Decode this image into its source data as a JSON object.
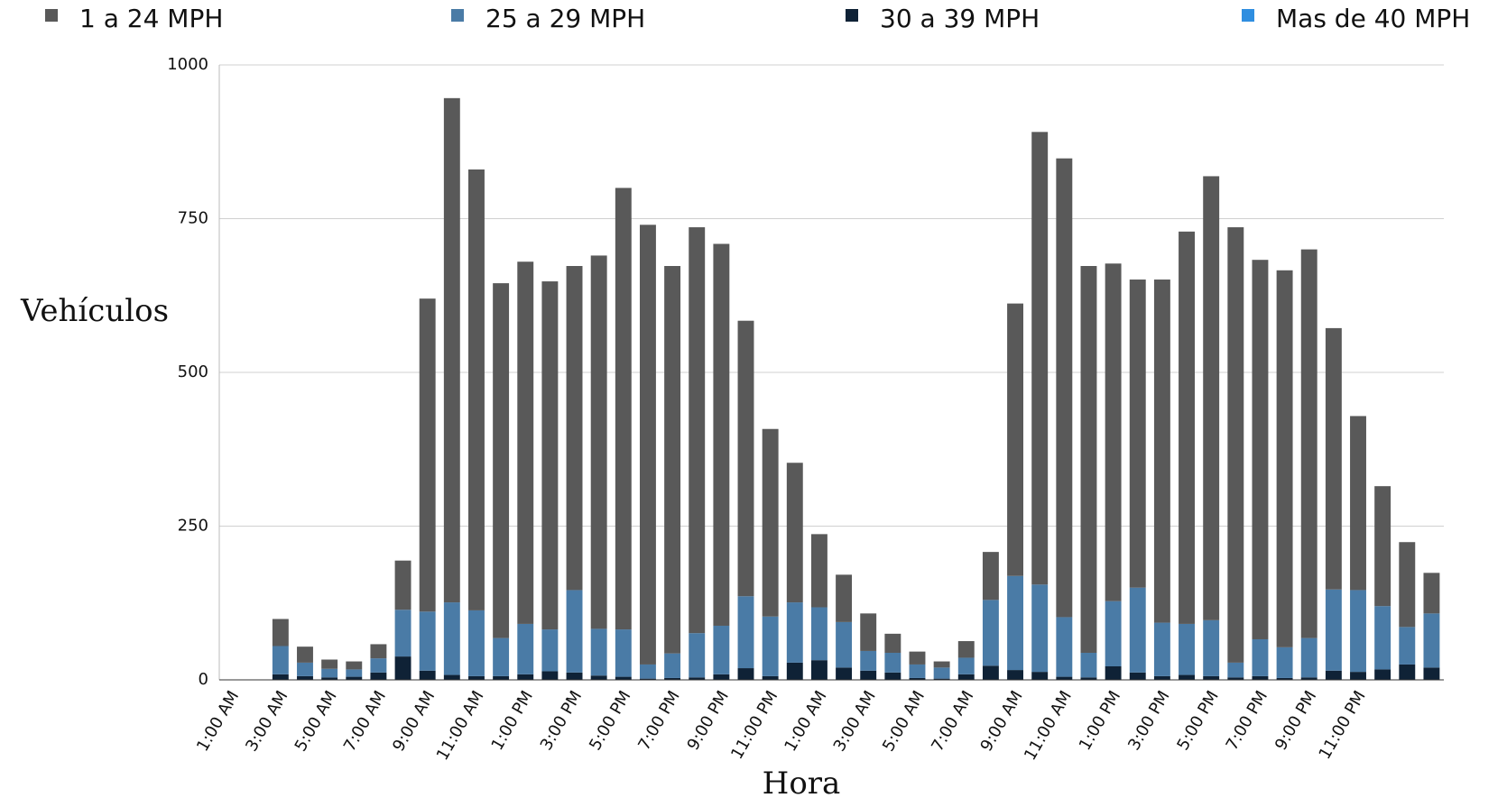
{
  "chart_data": {
    "type": "stacked_bar",
    "x_label": "Hora",
    "y_label": "Vehículos",
    "categories": [
      "1:00 AM",
      null,
      "3:00 AM",
      null,
      "5:00 AM",
      null,
      "7:00 AM",
      null,
      "9:00 AM",
      null,
      "11:00 AM",
      null,
      "1:00 PM",
      null,
      "3:00 PM",
      null,
      "5:00 PM",
      null,
      "7:00 PM",
      null,
      "9:00 PM",
      null,
      "11:00 PM",
      null,
      "1:00 AM",
      null,
      "3:00 AM",
      null,
      "5:00 AM",
      null,
      "7:00 AM",
      null,
      "9:00 AM",
      null,
      "11:00 AM",
      null,
      "1:00 PM",
      null,
      "3:00 PM",
      null,
      "5:00 PM",
      null,
      "7:00 PM",
      null,
      "9:00 PM",
      null,
      "11:00 PM",
      null,
      null,
      null
    ],
    "series": [
      {
        "name": "1 a 24 MPH",
        "color": "#595959",
        "values": [
          0,
          0,
          44,
          26,
          15,
          13,
          23,
          80,
          509,
          820,
          717,
          577,
          589,
          566,
          527,
          607,
          718,
          715,
          630,
          660,
          621,
          448,
          305,
          227,
          119,
          77,
          61,
          31,
          21,
          10,
          27,
          78,
          443,
          736,
          746,
          629,
          549,
          501,
          558,
          638,
          722,
          708,
          617,
          613,
          632,
          425,
          283,
          195,
          138,
          66
        ]
      },
      {
        "name": "25 a 29 MPH",
        "color": "#4a7ba6",
        "values": [
          0,
          0,
          46,
          22,
          14,
          12,
          23,
          76,
          96,
          118,
          107,
          62,
          82,
          68,
          134,
          76,
          77,
          23,
          40,
          72,
          79,
          117,
          97,
          98,
          86,
          74,
          32,
          32,
          22,
          18,
          27,
          107,
          153,
          142,
          97,
          40,
          106,
          138,
          87,
          83,
          91,
          24,
          60,
          50,
          64,
          132,
          133,
          103,
          61,
          88
        ]
      },
      {
        "name": "30 a 39 MPH",
        "color": "#0f2236",
        "values": [
          0,
          0,
          9,
          6,
          4,
          5,
          12,
          38,
          15,
          8,
          6,
          6,
          9,
          14,
          12,
          7,
          5,
          2,
          3,
          4,
          9,
          19,
          6,
          28,
          32,
          20,
          15,
          12,
          3,
          2,
          9,
          23,
          16,
          13,
          5,
          4,
          22,
          12,
          6,
          8,
          6,
          4,
          6,
          3,
          4,
          15,
          13,
          17,
          25,
          20
        ]
      },
      {
        "name": "Mas de 40 MPH",
        "color": "#2f8ee0",
        "values": [
          0,
          0,
          0,
          0,
          0,
          0,
          0,
          0,
          0,
          0,
          0,
          0,
          0,
          0,
          0,
          0,
          0,
          0,
          0,
          0,
          0,
          0,
          0,
          0,
          0,
          0,
          0,
          0,
          0,
          0,
          0,
          0,
          0,
          0,
          0,
          0,
          0,
          0,
          0,
          0,
          0,
          0,
          0,
          0,
          0,
          0,
          0,
          0,
          0,
          0
        ]
      }
    ],
    "ylim": [
      0,
      1000
    ],
    "yticks": [
      0,
      250,
      500,
      750,
      1000
    ],
    "grid": true,
    "legend": "top"
  }
}
